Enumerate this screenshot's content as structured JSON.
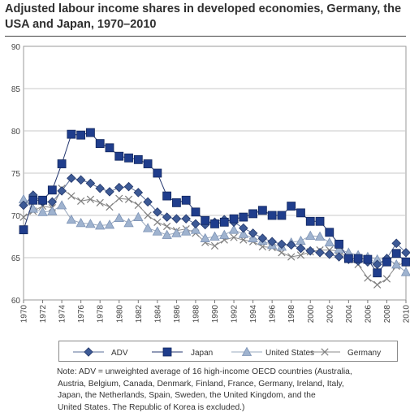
{
  "header": {
    "title": "Adjusted labour income shares in developed economies, Germany, the USA and Japan, 1970–2010"
  },
  "note": {
    "line1": "Note: ADV = unweighted average of 16 high-income OECD countries (Australia,",
    "line2": "Austria, Belgium, Canada, Denmark, Finland, France, Germany, Ireland, Italy,",
    "line3": "Japan, the Netherlands, Spain, Sweden, the United Kingdom, and the",
    "line4": "United States. The Republic of Korea is excluded.)"
  },
  "colors": {
    "adv": "#3d5a96",
    "japan": "#1f3d8c",
    "usa": "#9fb3cf",
    "germany": "#7f7f7f",
    "grid": "#c8c8c8"
  },
  "chart_data": {
    "type": "line",
    "title": "Adjusted labour income shares in developed economies, Germany, the USA and Japan, 1970–2010",
    "xlabel": "",
    "ylabel": "",
    "x": [
      1970,
      1971,
      1972,
      1973,
      1974,
      1975,
      1976,
      1977,
      1978,
      1979,
      1980,
      1981,
      1982,
      1983,
      1984,
      1985,
      1986,
      1987,
      1988,
      1989,
      1990,
      1991,
      1992,
      1993,
      1994,
      1995,
      1996,
      1997,
      1998,
      1999,
      2000,
      2001,
      2002,
      2003,
      2004,
      2005,
      2006,
      2007,
      2008,
      2009,
      2010
    ],
    "xticks": [
      1970,
      1972,
      1974,
      1976,
      1978,
      1980,
      1982,
      1984,
      1986,
      1988,
      1990,
      1992,
      1994,
      1996,
      1998,
      2000,
      2002,
      2004,
      2006,
      2008,
      2010
    ],
    "ylim": [
      60,
      90
    ],
    "yticks": [
      60,
      65,
      70,
      75,
      80,
      85,
      90
    ],
    "grid": true,
    "legend_position": "bottom",
    "series": [
      {
        "name": "ADV",
        "marker": "diamond",
        "color": "#3d5a96",
        "values": [
          71.2,
          72.4,
          71.6,
          71.6,
          72.9,
          74.4,
          74.2,
          73.8,
          73.2,
          72.8,
          73.3,
          73.4,
          72.7,
          71.6,
          70.4,
          69.8,
          69.6,
          69.6,
          69.0,
          68.9,
          69.2,
          69.5,
          69.2,
          68.5,
          67.9,
          67.3,
          66.9,
          66.6,
          66.5,
          66.1,
          65.8,
          65.6,
          65.4,
          65.1,
          64.8,
          64.6,
          64.5,
          64.2,
          64.9,
          66.7,
          65.6
        ]
      },
      {
        "name": "Japan",
        "marker": "square",
        "color": "#1f3d8c",
        "values": [
          68.3,
          71.8,
          71.8,
          73.0,
          76.1,
          79.6,
          79.5,
          79.8,
          78.5,
          78.0,
          77.0,
          76.8,
          76.6,
          76.1,
          75.0,
          72.3,
          71.5,
          71.8,
          70.4,
          69.4,
          69.0,
          69.2,
          69.6,
          69.8,
          70.2,
          70.6,
          70.0,
          70.0,
          71.1,
          70.3,
          69.3,
          69.3,
          68.0,
          66.6,
          64.9,
          64.9,
          64.8,
          63.2,
          64.5,
          65.5,
          64.5
        ]
      },
      {
        "name": "United States",
        "marker": "triangle",
        "color": "#9fb3cf",
        "values": [
          71.9,
          70.8,
          70.4,
          70.5,
          71.2,
          69.5,
          69.1,
          69.0,
          68.8,
          68.9,
          69.7,
          69.1,
          69.8,
          68.5,
          68.1,
          67.7,
          67.9,
          68.1,
          68.3,
          67.3,
          67.5,
          67.7,
          68.3,
          67.8,
          67.3,
          67.0,
          66.5,
          66.3,
          66.8,
          67.0,
          67.6,
          67.5,
          66.8,
          66.0,
          65.6,
          65.3,
          65.1,
          64.8,
          64.9,
          64.2,
          63.3
        ]
      },
      {
        "name": "Germany",
        "marker": "x",
        "color": "#7f7f7f",
        "values": [
          69.8,
          70.5,
          71.1,
          70.9,
          73.2,
          72.3,
          71.7,
          71.9,
          71.5,
          71.0,
          72.0,
          71.9,
          71.2,
          70.0,
          69.2,
          68.7,
          68.2,
          68.4,
          67.9,
          66.8,
          66.4,
          67.1,
          67.4,
          67.1,
          66.9,
          66.3,
          66.2,
          65.6,
          65.1,
          65.3,
          65.7,
          65.9,
          65.9,
          65.8,
          64.8,
          64.2,
          62.6,
          61.8,
          62.5,
          64.0,
          64.5
        ]
      }
    ]
  }
}
